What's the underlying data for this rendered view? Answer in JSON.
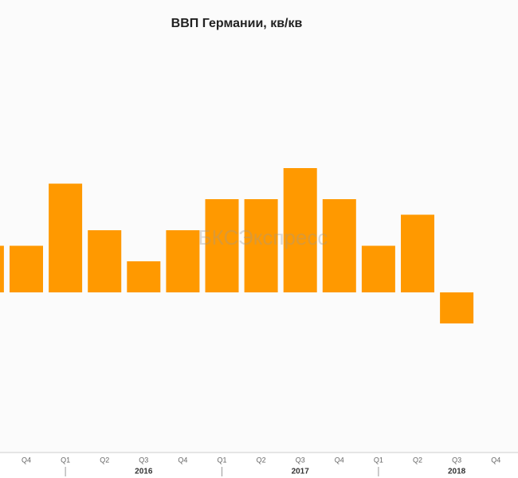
{
  "chart_data": {
    "type": "bar",
    "title": "ВВП Германии, кв/кв",
    "categories": [
      null,
      "Q4",
      "Q1",
      "Q2",
      "Q3",
      "Q4",
      "Q1",
      "Q2",
      "Q3",
      "Q4",
      "Q1",
      "Q2",
      "Q3",
      "Q4"
    ],
    "values": [
      0.3,
      0.3,
      0.7,
      0.4,
      0.2,
      0.4,
      0.6,
      0.6,
      0.8,
      0.6,
      0.3,
      0.5,
      -0.2,
      null
    ],
    "years": [
      "2016",
      "2017",
      "2018"
    ],
    "color": "#ff9900",
    "ylim": [
      -1,
      1.7
    ],
    "watermark": "БКСЭкспресс"
  }
}
